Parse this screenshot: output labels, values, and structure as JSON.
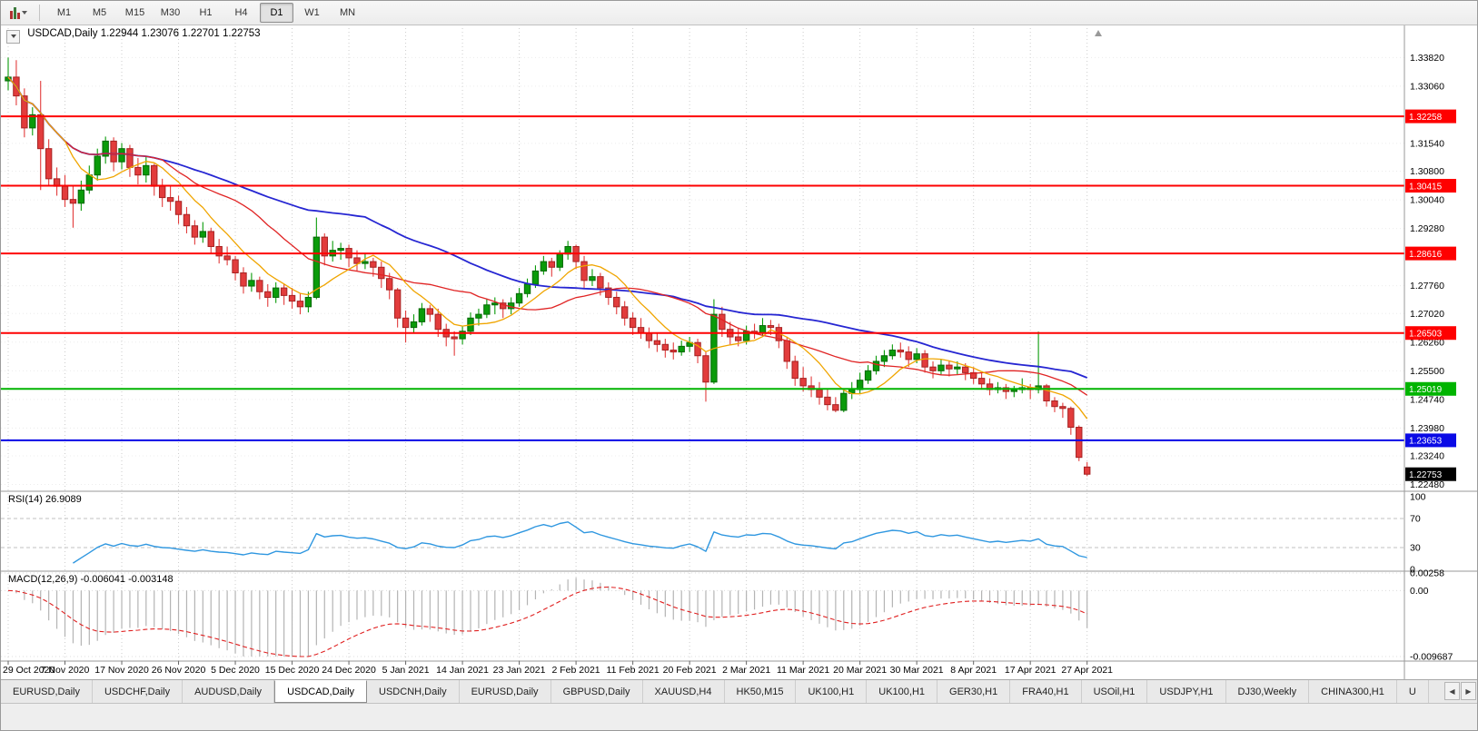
{
  "toolbar": {
    "timeframes": [
      {
        "label": "M1"
      },
      {
        "label": "M5"
      },
      {
        "label": "M15"
      },
      {
        "label": "M30"
      },
      {
        "label": "H1"
      },
      {
        "label": "H4"
      },
      {
        "label": "D1"
      },
      {
        "label": "W1"
      },
      {
        "label": "MN"
      }
    ],
    "active_timeframe": "D1",
    "left_icons": [
      {
        "name": "chart-type-candlestick-icon"
      },
      {
        "name": "dropdown-arrow-icon"
      }
    ]
  },
  "chart_data": {
    "type": "candlestick",
    "symbol": "USDCAD",
    "timeframe": "Daily",
    "title_line": "USDCAD,Daily 1.22944 1.23076 1.22701 1.22753",
    "last_ohlc": {
      "open": "1.22944",
      "high": "1.23076",
      "low": "1.22701",
      "close": "1.22753"
    },
    "ylim": [
      1.223,
      1.346
    ],
    "price_axis_labels": [
      "1.33820",
      "1.33060",
      "1.31540",
      "1.30800",
      "1.30040",
      "1.29280",
      "1.27760",
      "1.27020",
      "1.26260",
      "1.25500",
      "1.24740",
      "1.23980",
      "1.23240",
      "1.22480"
    ],
    "date_labels": [
      "29 Oct 2020",
      "7 Nov 2020",
      "17 Nov 2020",
      "26 Nov 2020",
      "5 Dec 2020",
      "15 Dec 2020",
      "24 Dec 2020",
      "5 Jan 2021",
      "14 Jan 2021",
      "23 Jan 2021",
      "2 Feb 2021",
      "11 Feb 2021",
      "20 Feb 2021",
      "2 Mar 2021",
      "11 Mar 2021",
      "20 Mar 2021",
      "30 Mar 2021",
      "8 Apr 2021",
      "17 Apr 2021",
      "27 Apr 2021"
    ],
    "date_label_indices": [
      0,
      7,
      14,
      21,
      28,
      35,
      42,
      49,
      56,
      63,
      70,
      77,
      84,
      91,
      98,
      105,
      112,
      119,
      126,
      133
    ],
    "colors": {
      "bull": "#0a9b0a",
      "bull_border": "#066806",
      "bear": "#e23c3c",
      "bear_border": "#a52222",
      "grid": "#cdcdcd"
    },
    "hlines": [
      {
        "price": 1.32258,
        "label": "1.32258",
        "color": "#fe0000"
      },
      {
        "price": 1.30415,
        "label": "1.30415",
        "color": "#fe0000"
      },
      {
        "price": 1.28616,
        "label": "1.28616",
        "color": "#fe0000"
      },
      {
        "price": 1.26503,
        "label": "1.26503",
        "color": "#fe0000"
      },
      {
        "price": 1.25019,
        "label": "1.25019",
        "color": "#00b400"
      },
      {
        "price": 1.23653,
        "label": "1.23653",
        "color": "#0a0ae6"
      }
    ],
    "current_price": {
      "price": 1.22753,
      "label": "1.22753",
      "color": "#000000"
    },
    "moving_averages": [
      {
        "name": "ma-slow",
        "period": 45,
        "color": "#2626d2",
        "width": 1.8
      },
      {
        "name": "ma-mid",
        "period": 20,
        "color": "#e02424",
        "width": 1.3
      },
      {
        "name": "ma-fast",
        "period": 8,
        "color": "#f0a500",
        "width": 1.3
      }
    ],
    "indicators": {
      "rsi": {
        "label": "RSI(14) 26.9089",
        "period": 14,
        "value": 26.9089,
        "axis_labels": [
          "100",
          "70",
          "30",
          "0"
        ],
        "levels": [
          70,
          30
        ],
        "color": "#2f97e0",
        "range": [
          0,
          100
        ]
      },
      "macd": {
        "label": "MACD(12,26,9) -0.006041 -0.003148",
        "fast": 12,
        "slow": 26,
        "signal": 9,
        "value": -0.006041,
        "signal_value": -0.003148,
        "axis_labels": [
          "0.00258",
          "0.00",
          "-0.009687"
        ],
        "range": [
          -0.009687,
          0.00258
        ],
        "histogram_color": "#b4b4b4",
        "signal_color": "#e02020"
      }
    },
    "ohlc": [
      [
        1.332,
        1.3382,
        1.3295,
        1.333
      ],
      [
        1.333,
        1.3375,
        1.3255,
        1.328
      ],
      [
        1.328,
        1.33,
        1.317,
        1.3195
      ],
      [
        1.3195,
        1.325,
        1.3175,
        1.323
      ],
      [
        1.323,
        1.332,
        1.303,
        1.314
      ],
      [
        1.314,
        1.3165,
        1.304,
        1.306
      ],
      [
        1.306,
        1.309,
        1.3015,
        1.304
      ],
      [
        1.304,
        1.307,
        1.2985,
        1.3005
      ],
      [
        1.3005,
        1.304,
        1.293,
        1.2995
      ],
      [
        1.2995,
        1.3055,
        1.2975,
        1.303
      ],
      [
        1.303,
        1.3095,
        1.302,
        1.307
      ],
      [
        1.307,
        1.314,
        1.3055,
        1.312
      ],
      [
        1.312,
        1.3172,
        1.31,
        1.316
      ],
      [
        1.316,
        1.317,
        1.308,
        1.3105
      ],
      [
        1.3105,
        1.3155,
        1.3085,
        1.314
      ],
      [
        1.314,
        1.315,
        1.3065,
        1.309
      ],
      [
        1.309,
        1.3115,
        1.3045,
        1.307
      ],
      [
        1.307,
        1.312,
        1.305,
        1.3095
      ],
      [
        1.3095,
        1.31,
        1.3015,
        1.304
      ],
      [
        1.304,
        1.306,
        1.2985,
        1.301
      ],
      [
        1.301,
        1.304,
        1.2975,
        1.3
      ],
      [
        1.3,
        1.3015,
        1.294,
        1.2965
      ],
      [
        1.2965,
        1.2985,
        1.2915,
        1.2935
      ],
      [
        1.2935,
        1.295,
        1.2885,
        1.2905
      ],
      [
        1.2905,
        1.2945,
        1.289,
        1.292
      ],
      [
        1.292,
        1.293,
        1.286,
        1.288
      ],
      [
        1.288,
        1.29,
        1.2835,
        1.2855
      ],
      [
        1.2855,
        1.288,
        1.283,
        1.2845
      ],
      [
        1.2845,
        1.2855,
        1.279,
        1.281
      ],
      [
        1.281,
        1.2825,
        1.2755,
        1.2775
      ],
      [
        1.2775,
        1.281,
        1.276,
        1.279
      ],
      [
        1.279,
        1.28,
        1.274,
        1.276
      ],
      [
        1.276,
        1.278,
        1.272,
        1.2745
      ],
      [
        1.2745,
        1.2785,
        1.273,
        1.277
      ],
      [
        1.277,
        1.278,
        1.2725,
        1.275
      ],
      [
        1.275,
        1.277,
        1.2715,
        1.2735
      ],
      [
        1.2735,
        1.2755,
        1.27,
        1.272
      ],
      [
        1.272,
        1.276,
        1.2705,
        1.2745
      ],
      [
        1.2745,
        1.2957,
        1.274,
        1.2905
      ],
      [
        1.2905,
        1.2915,
        1.283,
        1.2855
      ],
      [
        1.2855,
        1.2895,
        1.284,
        1.287
      ],
      [
        1.287,
        1.289,
        1.2845,
        1.2875
      ],
      [
        1.2875,
        1.2885,
        1.2825,
        1.285
      ],
      [
        1.285,
        1.287,
        1.2815,
        1.2835
      ],
      [
        1.2835,
        1.286,
        1.282,
        1.284
      ],
      [
        1.284,
        1.285,
        1.28,
        1.2825
      ],
      [
        1.2825,
        1.284,
        1.277,
        1.2795
      ],
      [
        1.2795,
        1.281,
        1.274,
        1.2765
      ],
      [
        1.2765,
        1.277,
        1.2665,
        1.269
      ],
      [
        1.269,
        1.271,
        1.2625,
        1.2665
      ],
      [
        1.2665,
        1.27,
        1.265,
        1.268
      ],
      [
        1.268,
        1.273,
        1.267,
        1.2715
      ],
      [
        1.2715,
        1.2725,
        1.268,
        1.27
      ],
      [
        1.27,
        1.2715,
        1.264,
        1.266
      ],
      [
        1.266,
        1.2675,
        1.2615,
        1.264
      ],
      [
        1.264,
        1.2655,
        1.259,
        1.2635
      ],
      [
        1.2635,
        1.267,
        1.262,
        1.2655
      ],
      [
        1.2655,
        1.2705,
        1.2645,
        1.269
      ],
      [
        1.269,
        1.2715,
        1.267,
        1.27
      ],
      [
        1.27,
        1.274,
        1.269,
        1.2725
      ],
      [
        1.2725,
        1.2745,
        1.27,
        1.273
      ],
      [
        1.273,
        1.274,
        1.269,
        1.2715
      ],
      [
        1.2715,
        1.2745,
        1.27,
        1.273
      ],
      [
        1.273,
        1.277,
        1.272,
        1.2755
      ],
      [
        1.2755,
        1.2795,
        1.2745,
        1.278
      ],
      [
        1.278,
        1.283,
        1.277,
        1.2815
      ],
      [
        1.2815,
        1.2855,
        1.2805,
        1.284
      ],
      [
        1.284,
        1.285,
        1.28,
        1.2825
      ],
      [
        1.2825,
        1.287,
        1.2815,
        1.286
      ],
      [
        1.286,
        1.2895,
        1.2845,
        1.288
      ],
      [
        1.288,
        1.2885,
        1.282,
        1.284
      ],
      [
        1.284,
        1.2855,
        1.277,
        1.279
      ],
      [
        1.279,
        1.282,
        1.2775,
        1.28
      ],
      [
        1.28,
        1.281,
        1.275,
        1.277
      ],
      [
        1.277,
        1.2785,
        1.2725,
        1.2745
      ],
      [
        1.2745,
        1.276,
        1.27,
        1.272
      ],
      [
        1.272,
        1.2735,
        1.267,
        1.269
      ],
      [
        1.269,
        1.2705,
        1.2645,
        1.2665
      ],
      [
        1.2665,
        1.269,
        1.2635,
        1.265
      ],
      [
        1.265,
        1.2665,
        1.261,
        1.263
      ],
      [
        1.263,
        1.265,
        1.26,
        1.262
      ],
      [
        1.262,
        1.2635,
        1.2585,
        1.2605
      ],
      [
        1.2605,
        1.2625,
        1.258,
        1.26
      ],
      [
        1.26,
        1.263,
        1.259,
        1.2615
      ],
      [
        1.2615,
        1.264,
        1.26,
        1.2625
      ],
      [
        1.2625,
        1.2635,
        1.257,
        1.259
      ],
      [
        1.259,
        1.26,
        1.2468,
        1.252
      ],
      [
        1.252,
        1.274,
        1.2515,
        1.27
      ],
      [
        1.27,
        1.272,
        1.264,
        1.266
      ],
      [
        1.266,
        1.268,
        1.262,
        1.264
      ],
      [
        1.264,
        1.2665,
        1.2615,
        1.263
      ],
      [
        1.263,
        1.267,
        1.262,
        1.2655
      ],
      [
        1.2655,
        1.2675,
        1.2635,
        1.265
      ],
      [
        1.265,
        1.269,
        1.264,
        1.267
      ],
      [
        1.267,
        1.2685,
        1.2645,
        1.2665
      ],
      [
        1.2665,
        1.2675,
        1.261,
        1.263
      ],
      [
        1.263,
        1.264,
        1.2555,
        1.2575
      ],
      [
        1.2575,
        1.259,
        1.251,
        1.253
      ],
      [
        1.253,
        1.256,
        1.2495,
        1.251
      ],
      [
        1.251,
        1.2535,
        1.248,
        1.25
      ],
      [
        1.25,
        1.252,
        1.246,
        1.248
      ],
      [
        1.248,
        1.25,
        1.2445,
        1.246
      ],
      [
        1.246,
        1.248,
        1.244,
        1.2445
      ],
      [
        1.2445,
        1.25,
        1.244,
        1.249
      ],
      [
        1.249,
        1.252,
        1.2475,
        1.25
      ],
      [
        1.25,
        1.2545,
        1.249,
        1.2525
      ],
      [
        1.2525,
        1.2565,
        1.2515,
        1.255
      ],
      [
        1.255,
        1.259,
        1.254,
        1.2575
      ],
      [
        1.2575,
        1.2605,
        1.256,
        1.259
      ],
      [
        1.259,
        1.262,
        1.258,
        1.2605
      ],
      [
        1.2605,
        1.2625,
        1.2585,
        1.26
      ],
      [
        1.26,
        1.2615,
        1.256,
        1.258
      ],
      [
        1.258,
        1.261,
        1.257,
        1.2595
      ],
      [
        1.2595,
        1.2605,
        1.2545,
        1.256
      ],
      [
        1.256,
        1.2575,
        1.253,
        1.255
      ],
      [
        1.255,
        1.258,
        1.254,
        1.2565
      ],
      [
        1.2565,
        1.2575,
        1.2535,
        1.2555
      ],
      [
        1.2555,
        1.2575,
        1.254,
        1.256
      ],
      [
        1.256,
        1.257,
        1.2525,
        1.2545
      ],
      [
        1.2545,
        1.256,
        1.2515,
        1.253
      ],
      [
        1.253,
        1.2545,
        1.25,
        1.2515
      ],
      [
        1.2515,
        1.253,
        1.2485,
        1.25
      ],
      [
        1.25,
        1.252,
        1.249,
        1.2505
      ],
      [
        1.2505,
        1.2515,
        1.2475,
        1.2495
      ],
      [
        1.2495,
        1.251,
        1.248,
        1.25
      ],
      [
        1.25,
        1.253,
        1.249,
        1.2505
      ],
      [
        1.2505,
        1.2515,
        1.2475,
        1.25
      ],
      [
        1.25,
        1.2654,
        1.249,
        1.251
      ],
      [
        1.251,
        1.2515,
        1.2455,
        1.247
      ],
      [
        1.247,
        1.248,
        1.244,
        1.2455
      ],
      [
        1.2455,
        1.2465,
        1.2425,
        1.245
      ],
      [
        1.245,
        1.2455,
        1.238,
        1.24
      ],
      [
        1.24,
        1.2405,
        1.231,
        1.232
      ],
      [
        1.22944,
        1.23076,
        1.22701,
        1.22753
      ]
    ]
  },
  "tabs": {
    "items": [
      {
        "label": "EURUSD,Daily"
      },
      {
        "label": "USDCHF,Daily"
      },
      {
        "label": "AUDUSD,Daily"
      },
      {
        "label": "USDCAD,Daily",
        "active": true
      },
      {
        "label": "USDCNH,Daily"
      },
      {
        "label": "EURUSD,Daily"
      },
      {
        "label": "GBPUSD,Daily"
      },
      {
        "label": "XAUUSD,H4"
      },
      {
        "label": "HK50,M15"
      },
      {
        "label": "UK100,H1"
      },
      {
        "label": "UK100,H1"
      },
      {
        "label": "GER30,H1"
      },
      {
        "label": "FRA40,H1"
      },
      {
        "label": "USOil,H1"
      },
      {
        "label": "USDJPY,H1"
      },
      {
        "label": "DJ30,Weekly"
      },
      {
        "label": "CHINA300,H1"
      },
      {
        "label": "U"
      }
    ],
    "scroll_icons": [
      {
        "name": "tab-scroll-left-icon",
        "glyph": "◀"
      },
      {
        "name": "tab-scroll-right-icon",
        "glyph": "▶"
      }
    ]
  }
}
